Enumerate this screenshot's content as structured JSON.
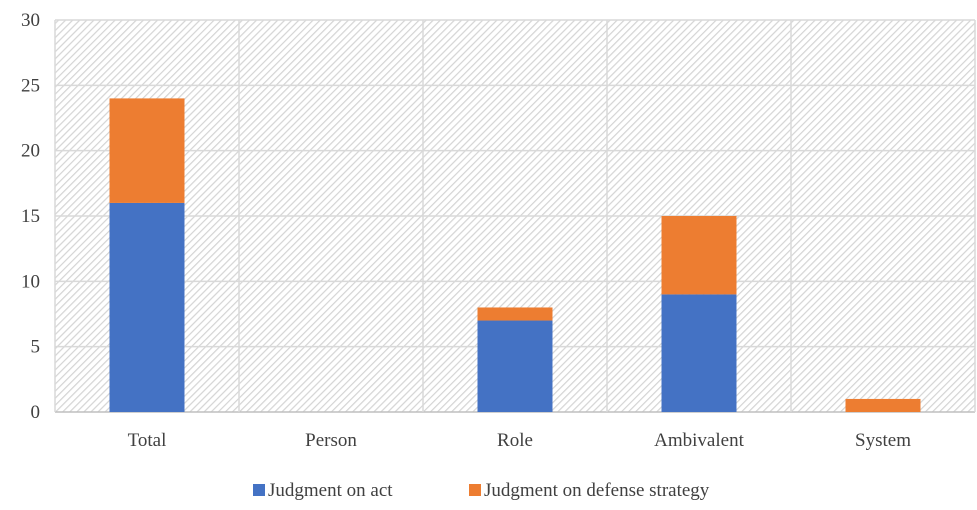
{
  "chart_data": {
    "type": "bar",
    "stacked": true,
    "categories": [
      "Total",
      "Person",
      "Role",
      "Ambivalent",
      "System"
    ],
    "series": [
      {
        "name": "Judgment on act",
        "values": [
          16,
          0,
          7,
          9,
          0
        ],
        "color": "#4472C4"
      },
      {
        "name": "Judgment on defense strategy",
        "values": [
          8,
          0,
          1,
          6,
          1
        ],
        "color": "#ED7D31"
      }
    ],
    "ylim": [
      0,
      30
    ],
    "yticks": [
      "0",
      "5",
      "10",
      "15",
      "20",
      "25",
      "30"
    ],
    "grid": true,
    "plot_background": "hatched-light-gray",
    "legend_position": "bottom"
  }
}
